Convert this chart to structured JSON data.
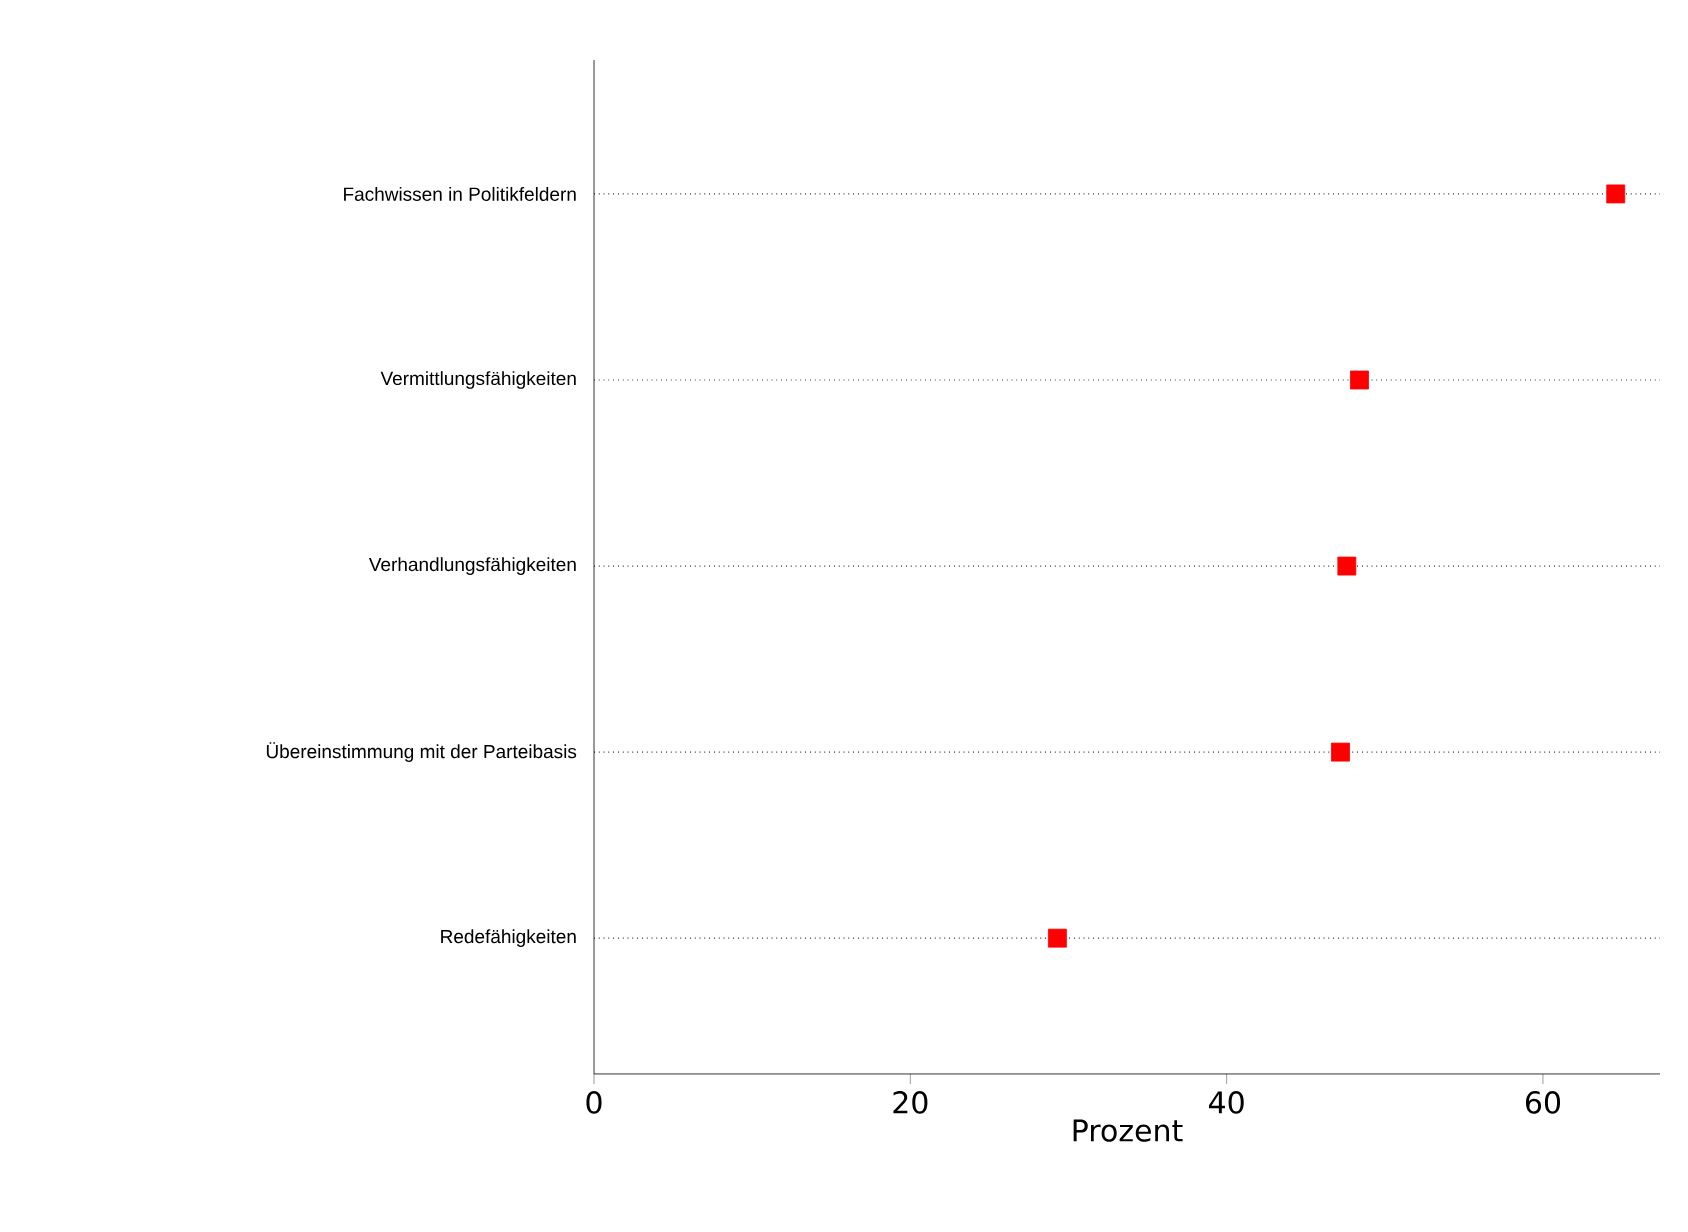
{
  "chart_data": {
    "type": "scatter",
    "orientation": "horizontal",
    "categories": [
      "Fachwissen in Politikfeldern",
      "Vermittlungsfähigkeiten",
      "Verhandlungsfähigkeiten",
      "Übereinstimmung mit der Parteibasis",
      "Redefähigkeiten"
    ],
    "values": [
      64.6,
      48.4,
      47.6,
      47.2,
      29.3
    ],
    "color": "#ff0000",
    "marker": "square",
    "grid": "y",
    "xlabel": "Prozent",
    "xlim": [
      0,
      67.4
    ],
    "xticks": [
      0,
      20,
      40,
      60
    ]
  }
}
